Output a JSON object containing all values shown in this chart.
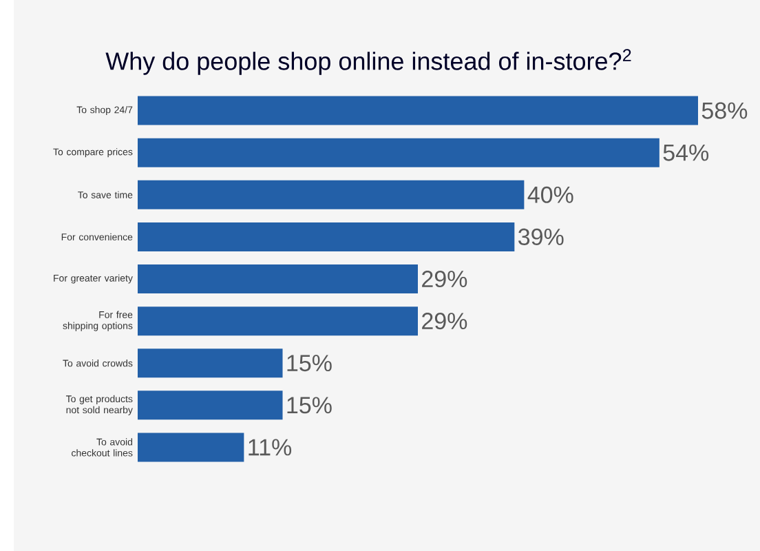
{
  "chart_data": {
    "type": "bar",
    "orientation": "horizontal",
    "title": "Why do people shop online instead of in-store?$^{2}$",
    "categories": [
      "To shop 24/7",
      "To compare prices",
      "To save time",
      "For convenience",
      "For greater variety",
      "For free shipping options",
      "To avoid crowds",
      "To get products not sold nearby",
      "To avoid checkout lines"
    ],
    "values": [
      58,
      54,
      40,
      39,
      29,
      29,
      15,
      15,
      11
    ],
    "value_labels": [
      "58%",
      "54%",
      "40%",
      "39%",
      "29%",
      "29%",
      "15%",
      "15%",
      "11%"
    ],
    "color": "#2360a8"
  }
}
